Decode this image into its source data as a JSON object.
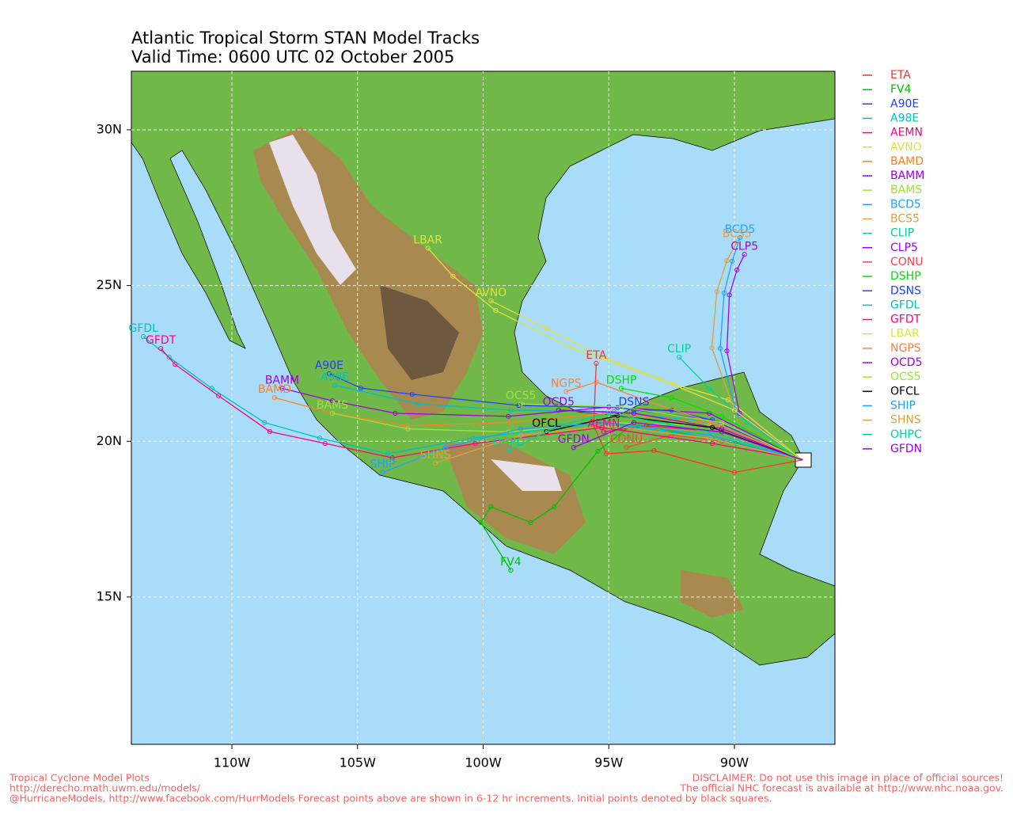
{
  "map": {
    "title": "Atlantic Tropical Storm STAN Model Tracks",
    "subtitle": "Valid Time: 0600 UTC 02 October 2005",
    "xlim": [
      -114,
      -86
    ],
    "ylim": [
      10.27,
      31.88
    ],
    "xticks": [
      {
        "value": -110,
        "label": "110W"
      },
      {
        "value": -105,
        "label": "105W"
      },
      {
        "value": -100,
        "label": "100W"
      },
      {
        "value": -95,
        "label": "95W"
      },
      {
        "value": -90,
        "label": "90W"
      }
    ],
    "yticks": [
      {
        "value": 15,
        "label": "15N"
      },
      {
        "value": 20,
        "label": "20N"
      },
      {
        "value": 25,
        "label": "25N"
      },
      {
        "value": 30,
        "label": "30N"
      }
    ],
    "grid": true,
    "tracks": [
      {
        "name": "ETA",
        "color": "#ff3030",
        "lon": [
          -87.3,
          -90.0,
          -93.2,
          -95.1,
          -95.6,
          -95.5
        ],
        "lat": [
          19.4,
          19.0,
          19.7,
          19.6,
          20.5,
          22.5
        ]
      },
      {
        "name": "FV4",
        "color": "#00c000",
        "lon": [
          -87.3,
          -89.94,
          -94.03,
          -95.44,
          -97.17,
          -98.11,
          -99.69,
          -100.09,
          -98.9
        ],
        "lat": [
          19.4,
          19.93,
          20.56,
          19.68,
          17.9,
          17.39,
          17.9,
          17.39,
          15.86
        ]
      },
      {
        "name": "A90E",
        "color": "#2040ff",
        "lon": [
          -87.3,
          -90.88,
          -94.65,
          -98.58,
          -102.83,
          -104.87,
          -106.13
        ],
        "lat": [
          19.4,
          20.69,
          21.08,
          21.15,
          21.51,
          21.71,
          22.17
        ]
      },
      {
        "name": "A98E",
        "color": "#00c0c0",
        "lon": [
          -87.3,
          -90.9,
          -94.8,
          -98.9,
          -102.6,
          -105.9
        ],
        "lat": [
          19.4,
          20.6,
          20.95,
          21.0,
          21.2,
          21.8
        ]
      },
      {
        "name": "AEMN",
        "color": "#ff0080",
        "lon": [
          -87.3,
          -90.5,
          -93.5,
          -95.2
        ],
        "lat": [
          19.4,
          20.3,
          20.5,
          20.3
        ]
      },
      {
        "name": "AVNO",
        "color": "#e0e040",
        "lon": [
          -87.3,
          -90.25,
          -92.45,
          -95.13,
          -97.48,
          -99.69
        ],
        "lat": [
          19.4,
          21.33,
          21.84,
          22.68,
          23.62,
          24.51
        ]
      },
      {
        "name": "BAMD",
        "color": "#ff8020",
        "lon": [
          -87.3,
          -91.0,
          -95.0,
          -99.0,
          -103.0,
          -106.0,
          -108.3
        ],
        "lat": [
          19.4,
          20.6,
          20.9,
          20.6,
          20.5,
          20.9,
          21.4
        ]
      },
      {
        "name": "BAMM",
        "color": "#a000e0",
        "lon": [
          -87.3,
          -91.0,
          -95.0,
          -99.0,
          -103.5,
          -106.0,
          -108.0
        ],
        "lat": [
          19.4,
          20.9,
          21.1,
          20.8,
          20.9,
          21.3,
          21.7
        ]
      },
      {
        "name": "BAMS",
        "color": "#a0e040",
        "lon": [
          -87.3,
          -91.0,
          -95.0,
          -99.0,
          -103.0,
          -106.0
        ],
        "lat": [
          19.4,
          20.5,
          20.6,
          20.3,
          20.4,
          20.9
        ]
      },
      {
        "name": "BCD5",
        "color": "#20a0ff",
        "lon": [
          -87.3,
          -89.94,
          -90.57,
          -90.41,
          -90.09,
          -89.78
        ],
        "lat": [
          19.4,
          20.95,
          22.98,
          24.76,
          25.78,
          26.54
        ]
      },
      {
        "name": "BCS5",
        "color": "#e0a040",
        "lon": [
          -87.3,
          -90.0,
          -90.9,
          -90.7,
          -90.3,
          -89.9
        ],
        "lat": [
          19.4,
          21.0,
          23.0,
          24.8,
          25.8,
          26.4
        ]
      },
      {
        "name": "CLIP",
        "color": "#00d0a0",
        "lon": [
          -87.3,
          -89.5,
          -91.0,
          -92.2
        ],
        "lat": [
          19.4,
          20.6,
          21.7,
          22.7
        ]
      },
      {
        "name": "CLP5",
        "color": "#a000ff",
        "lon": [
          -87.3,
          -89.8,
          -90.3,
          -90.2,
          -89.9,
          -89.6
        ],
        "lat": [
          19.4,
          20.9,
          22.9,
          24.7,
          25.5,
          26.0
        ]
      },
      {
        "name": "CONU",
        "color": "#ff4040",
        "lon": [
          -87.3,
          -90.5,
          -92.5,
          -94.3
        ],
        "lat": [
          19.4,
          20.0,
          20.2,
          19.8
        ]
      },
      {
        "name": "DSHP",
        "color": "#00e000",
        "lon": [
          -87.3,
          -90.5,
          -92.5,
          -94.5
        ],
        "lat": [
          19.4,
          20.8,
          21.4,
          21.7
        ]
      },
      {
        "name": "DSNS",
        "color": "#2040ff",
        "lon": [
          -87.3,
          -90.5,
          -92.5,
          -94.0
        ],
        "lat": [
          19.4,
          20.6,
          21.0,
          21.0
        ]
      },
      {
        "name": "GFDL",
        "color": "#00c0c0",
        "lon": [
          -87.3,
          -90.9,
          -95.3,
          -100.4,
          -103.8,
          -106.5,
          -108.7,
          -110.8,
          -112.5,
          -113.52
        ],
        "lat": [
          19.4,
          20.1,
          20.6,
          20.1,
          19.6,
          20.1,
          20.6,
          21.7,
          22.7,
          23.36
        ]
      },
      {
        "name": "GFDT",
        "color": "#ff0080",
        "lon": [
          -87.27,
          -90.88,
          -95.28,
          -100.31,
          -103.62,
          -106.29,
          -108.49,
          -110.53,
          -112.26,
          -112.83
        ],
        "lat": [
          19.42,
          19.93,
          20.44,
          19.93,
          19.47,
          19.93,
          20.31,
          21.46,
          22.47,
          22.98
        ]
      },
      {
        "name": "LBAR",
        "color": "#e0e040",
        "lon": [
          -87.3,
          -90.0,
          -93.0,
          -96.5,
          -99.5,
          -101.2,
          -102.2
        ],
        "lat": [
          19.4,
          21.0,
          22.0,
          23.0,
          24.2,
          25.3,
          26.2
        ]
      },
      {
        "name": "NGPS",
        "color": "#ff8040",
        "lon": [
          -87.3,
          -90.5,
          -93.5,
          -95.5,
          -96.7
        ],
        "lat": [
          19.4,
          20.5,
          21.3,
          21.9,
          21.6
        ]
      },
      {
        "name": "OCD5",
        "color": "#a000e0",
        "lon": [
          -87.3,
          -90.5,
          -94.0,
          -97.0
        ],
        "lat": [
          19.4,
          20.4,
          20.9,
          21.0
        ]
      },
      {
        "name": "OCS5",
        "color": "#a0e040",
        "lon": [
          -87.3,
          -90.5,
          -94.5,
          -98.5
        ],
        "lat": [
          19.4,
          20.6,
          21.1,
          21.2
        ]
      },
      {
        "name": "OFCL",
        "color": "#000000",
        "lon": [
          -87.3,
          -90.88,
          -94.65,
          -97.48
        ],
        "lat": [
          19.4,
          20.44,
          20.82,
          20.31
        ]
      },
      {
        "name": "SHIP",
        "color": "#20a0ff",
        "lon": [
          -87.3,
          -91.0,
          -95.0,
          -98.5,
          -101.5,
          -104.0
        ],
        "lat": [
          19.4,
          20.2,
          20.6,
          20.4,
          19.8,
          19.0
        ]
      },
      {
        "name": "SHNS",
        "color": "#e0a040",
        "lon": [
          -87.3,
          -91.0,
          -95.0,
          -98.5,
          -101.9
        ],
        "lat": [
          19.4,
          20.1,
          20.5,
          20.2,
          19.3
        ]
      },
      {
        "name": "OHPC",
        "color": "#00d0a0",
        "lon": [
          -87.3,
          -91.0,
          -95.0,
          -97.0,
          -99.0
        ],
        "lat": [
          19.4,
          20.3,
          20.9,
          20.5,
          19.7
        ]
      },
      {
        "name": "GFDN",
        "color": "#a000e0",
        "lon": [
          -87.3,
          -90.5,
          -94.0,
          -96.4
        ],
        "lat": [
          19.4,
          20.3,
          20.6,
          19.8
        ]
      }
    ],
    "footer_left": [
      "Tropical Cyclone Model Plots",
      "http://derecho.math.uwm.edu/models/",
      "@HurricaneModels, http://www.facebook.com/HurrModels  Forecast points above are shown in 6-12 hr increments. Initial points denoted by black squares."
    ],
    "footer_right": [
      "DISCLAIMER: Do not use this image in place of official sources!",
      "The official NHC forecast is available at http://www.nhc.noaa.gov."
    ]
  }
}
